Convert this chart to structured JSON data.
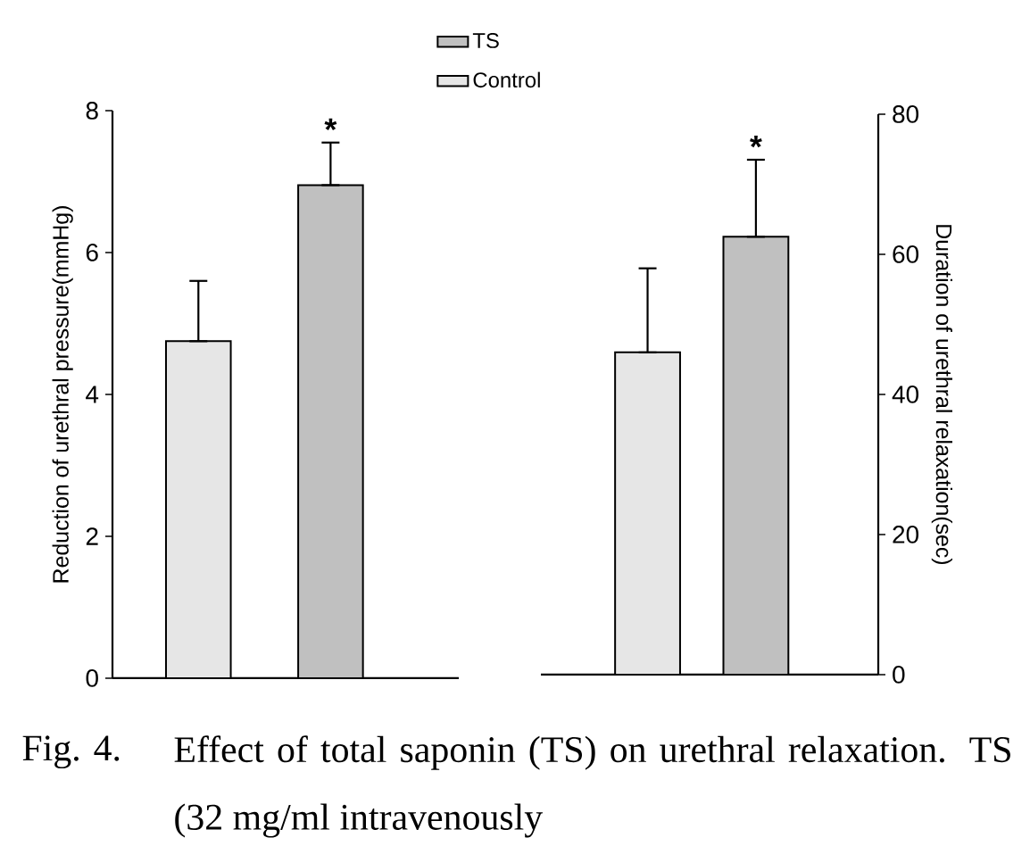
{
  "chart_data": [
    {
      "type": "bar",
      "categories": [
        null,
        null
      ],
      "ylabel": "Reduction of urethral pressure(mmHg)",
      "ylim": [
        0,
        8
      ],
      "yticks": [
        0,
        2,
        4,
        6,
        8
      ],
      "legend": "top",
      "series": [
        {
          "name": "TS",
          "color": "#c0c0c0",
          "values": [
            null,
            6.95
          ],
          "errors": [
            null,
            [
              6.95,
              7.55
            ]
          ]
        },
        {
          "name": "Control",
          "color": "#e6e6e6",
          "values": [
            4.75,
            null
          ],
          "errors": [
            [
              4.75,
              5.6
            ],
            null
          ]
        }
      ],
      "annotations": [
        "*",
        "Fig. 4.",
        "Effect of total saponin (TS) on urethral relaxation. TS (32 mg/ml intravenously"
      ]
    },
    {
      "type": "bar",
      "categories": [
        null,
        null
      ],
      "y2label": "Duration of urethral relaxation(sec)",
      "y2lim": [
        0,
        80
      ],
      "y2ticks": [
        0,
        20,
        40,
        60,
        80
      ],
      "series": [
        {
          "color": "#c0c0c0",
          "axis": "y2",
          "values": [
            null,
            62.5
          ],
          "errors": [
            null,
            [
              62.5,
              73.5
            ]
          ]
        },
        {
          "color": "#e6e6e6",
          "axis": "y2",
          "values": [
            46,
            null
          ],
          "errors": [
            [
              46,
              58
            ],
            null
          ]
        }
      ],
      "annotations": [
        "*"
      ]
    }
  ]
}
